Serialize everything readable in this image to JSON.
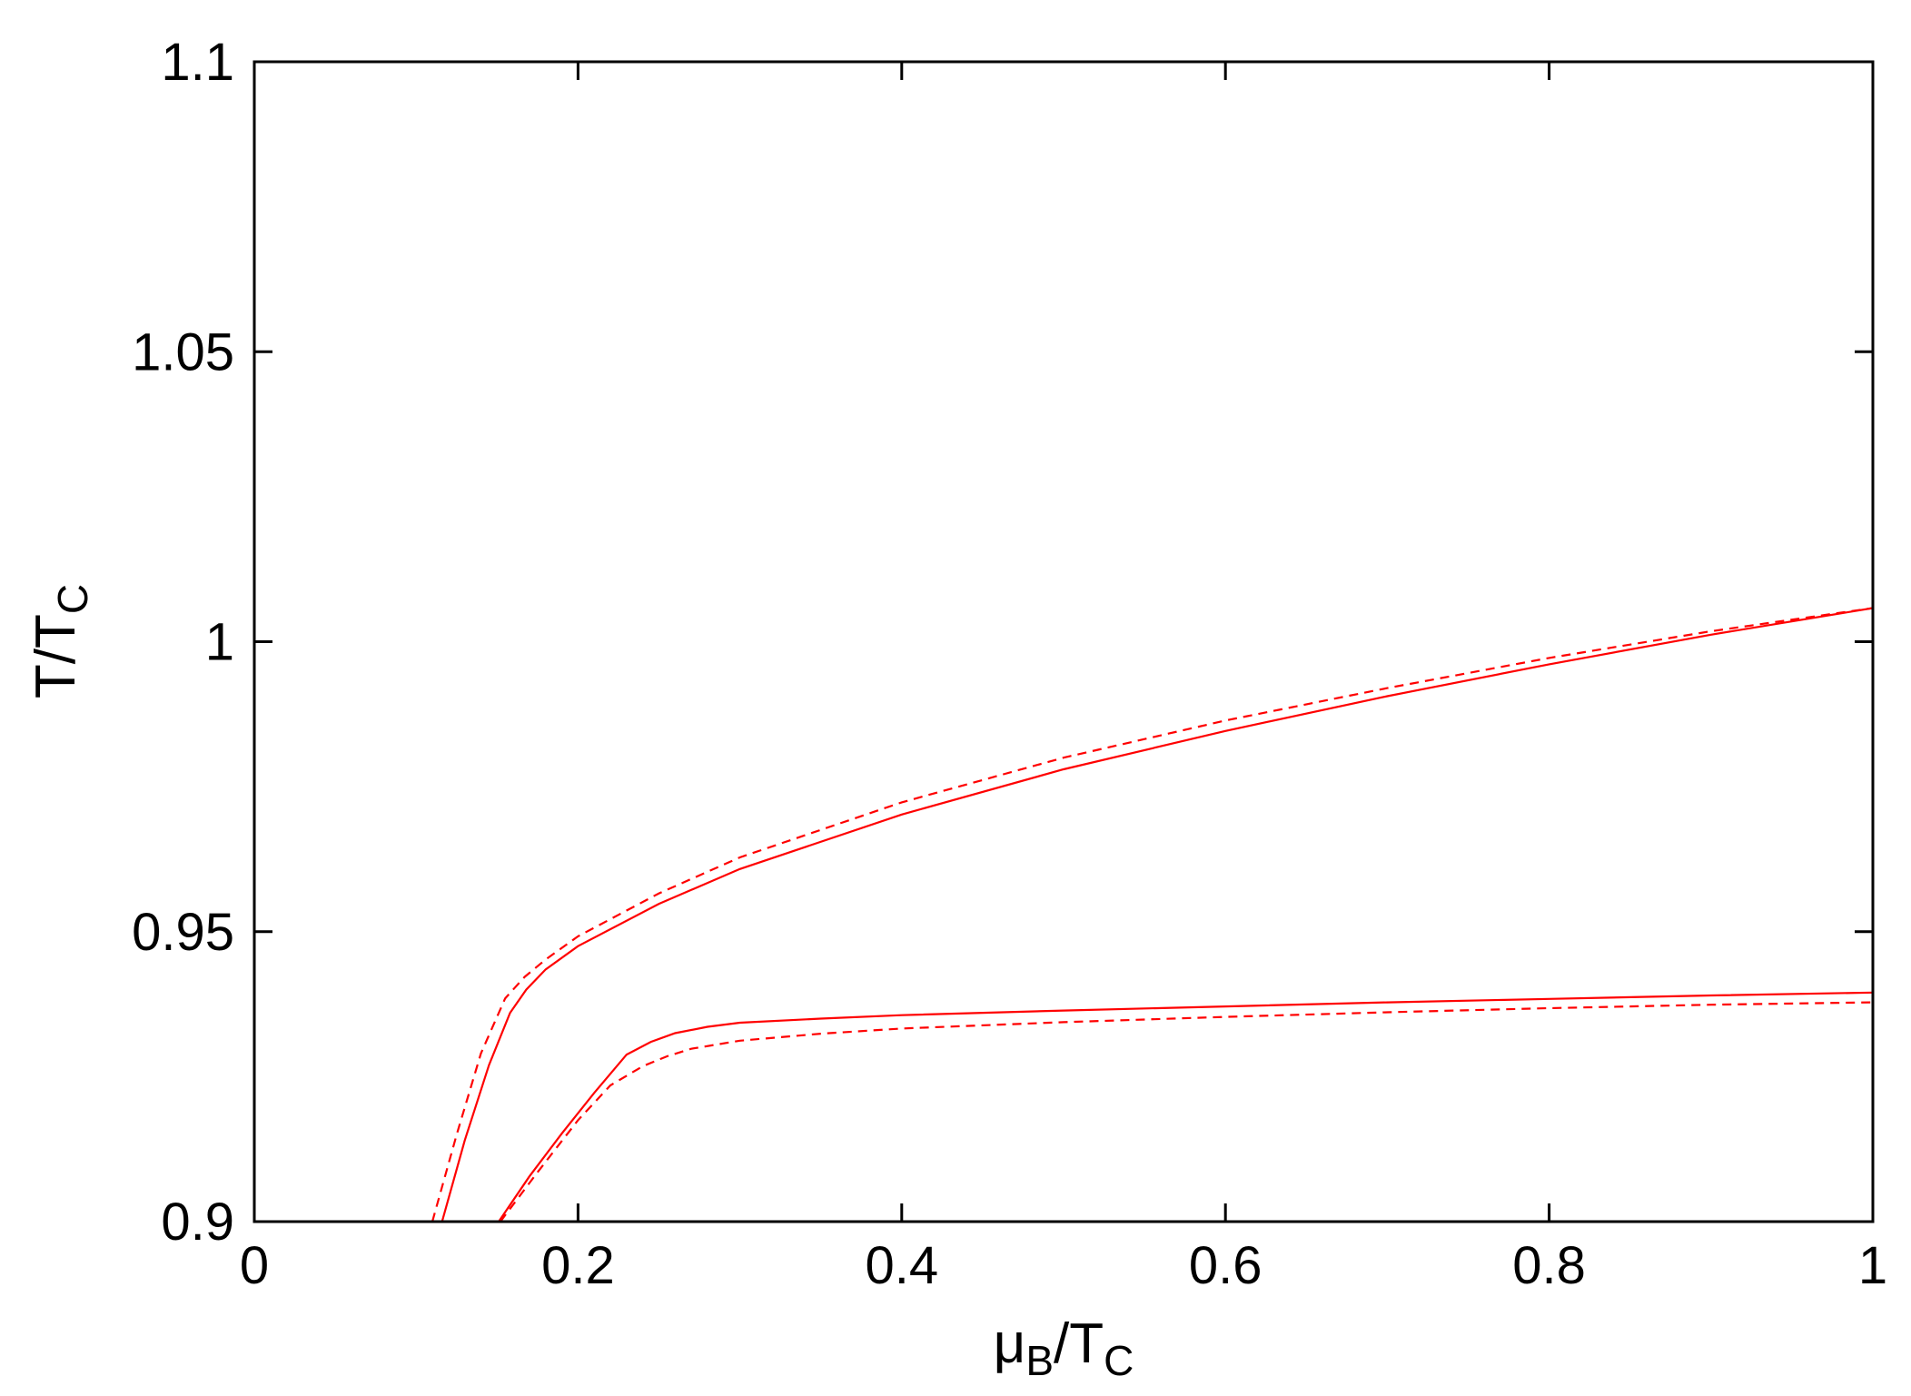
{
  "chart_data": {
    "type": "line",
    "title": "",
    "xlabel": {
      "main": "μ",
      "sub1": "B",
      "mid": "/T",
      "sub2": "C"
    },
    "ylabel": {
      "main": "T/T",
      "sub": "C"
    },
    "xlim": [
      0,
      1
    ],
    "ylim": [
      0.9,
      1.1
    ],
    "xticks": [
      {
        "value": 0,
        "label": "0"
      },
      {
        "value": 0.2,
        "label": "0.2"
      },
      {
        "value": 0.4,
        "label": "0.4"
      },
      {
        "value": 0.6,
        "label": "0.6"
      },
      {
        "value": 0.8,
        "label": "0.8"
      },
      {
        "value": 1,
        "label": "1"
      }
    ],
    "yticks": [
      {
        "value": 0.9,
        "label": "0.9"
      },
      {
        "value": 0.95,
        "label": "0.95"
      },
      {
        "value": 1.0,
        "label": "1"
      },
      {
        "value": 1.05,
        "label": "1.05"
      },
      {
        "value": 1.1,
        "label": "1.1"
      }
    ],
    "grid": false,
    "color": "#ff0000",
    "series": [
      {
        "style": "solid",
        "x": [
          0.116,
          0.13,
          0.145,
          0.158,
          0.168,
          0.18,
          0.2,
          0.25,
          0.3,
          0.4,
          0.5,
          0.6,
          0.7,
          0.8,
          0.9,
          1.0
        ],
        "y": [
          0.9,
          0.914,
          0.927,
          0.936,
          0.94,
          0.9435,
          0.9475,
          0.9548,
          0.9608,
          0.9702,
          0.978,
          0.9846,
          0.9906,
          0.9961,
          1.0012,
          1.0058
        ]
      },
      {
        "style": "dashed",
        "x": [
          0.11,
          0.125,
          0.14,
          0.155,
          0.167,
          0.18,
          0.2,
          0.25,
          0.3,
          0.4,
          0.5,
          0.6,
          0.7,
          0.8,
          0.9,
          1.0
        ],
        "y": [
          0.9,
          0.915,
          0.929,
          0.9385,
          0.9422,
          0.9452,
          0.9492,
          0.9566,
          0.9628,
          0.9723,
          0.98,
          0.9864,
          0.992,
          0.9972,
          1.0018,
          1.0058
        ]
      },
      {
        "style": "solid",
        "x": [
          0.151,
          0.17,
          0.19,
          0.21,
          0.23,
          0.245,
          0.26,
          0.28,
          0.3,
          0.35,
          0.4,
          0.5,
          0.6,
          0.7,
          0.8,
          0.9,
          1.0
        ],
        "y": [
          0.9,
          0.9078,
          0.9152,
          0.9222,
          0.9288,
          0.931,
          0.9325,
          0.9336,
          0.9343,
          0.935,
          0.9356,
          0.9364,
          0.9371,
          0.9378,
          0.9384,
          0.939,
          0.9395
        ]
      },
      {
        "style": "dashed",
        "x": [
          0.152,
          0.175,
          0.2,
          0.22,
          0.24,
          0.255,
          0.27,
          0.3,
          0.35,
          0.4,
          0.5,
          0.6,
          0.7,
          0.8,
          0.9,
          1.0
        ],
        "y": [
          0.9,
          0.9085,
          0.9175,
          0.9235,
          0.9268,
          0.9285,
          0.9298,
          0.9312,
          0.9324,
          0.9333,
          0.9344,
          0.9353,
          0.9361,
          0.9368,
          0.9374,
          0.9378
        ]
      }
    ]
  }
}
